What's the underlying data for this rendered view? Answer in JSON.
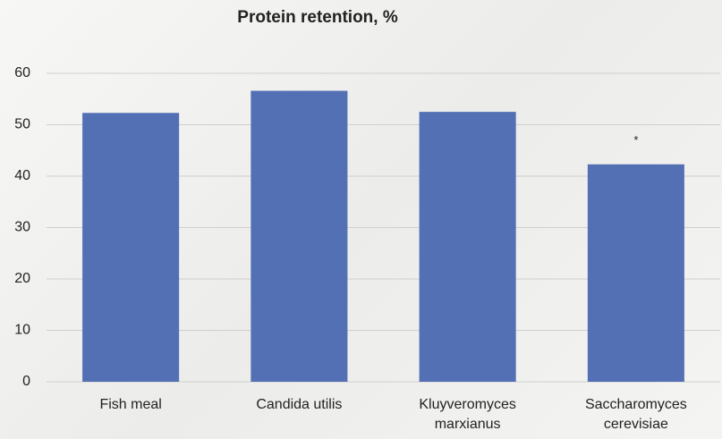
{
  "chart_data": {
    "type": "bar",
    "title": "Protein retention, %",
    "categories": [
      "Fish meal",
      "Candida utilis",
      "Kluyveromyces marxianus",
      "Saccharomyces cerevisiae"
    ],
    "values": [
      52.3,
      56.6,
      52.5,
      42.3
    ],
    "color": "#5470b4",
    "ylim": [
      0,
      60
    ],
    "yticks": [
      0,
      10,
      20,
      30,
      40,
      50,
      60
    ],
    "grid": true,
    "annotations": [
      {
        "category": 3,
        "text": "*"
      }
    ]
  }
}
